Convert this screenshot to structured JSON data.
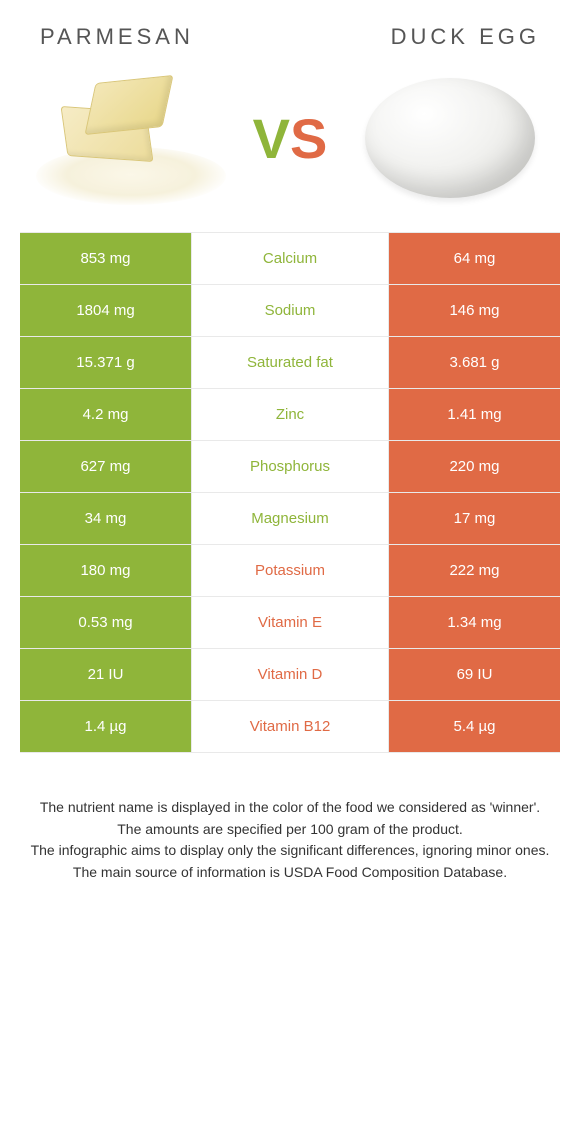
{
  "colors": {
    "green": "#8fb53a",
    "orange": "#e06a45",
    "row_border": "#e9e9e9",
    "text": "#333333",
    "title_text": "#555555",
    "background": "#ffffff"
  },
  "header": {
    "left_title": "PARMESAN",
    "right_title": "DUCK EGG",
    "vs_v": "V",
    "vs_s": "S"
  },
  "rows": [
    {
      "nutrient": "Calcium",
      "left": "853 mg",
      "right": "64 mg",
      "winner": "left"
    },
    {
      "nutrient": "Sodium",
      "left": "1804 mg",
      "right": "146 mg",
      "winner": "left"
    },
    {
      "nutrient": "Saturated fat",
      "left": "15.371 g",
      "right": "3.681 g",
      "winner": "left"
    },
    {
      "nutrient": "Zinc",
      "left": "4.2 mg",
      "right": "1.41 mg",
      "winner": "left"
    },
    {
      "nutrient": "Phosphorus",
      "left": "627 mg",
      "right": "220 mg",
      "winner": "left"
    },
    {
      "nutrient": "Magnesium",
      "left": "34 mg",
      "right": "17 mg",
      "winner": "left"
    },
    {
      "nutrient": "Potassium",
      "left": "180 mg",
      "right": "222 mg",
      "winner": "right"
    },
    {
      "nutrient": "Vitamin E",
      "left": "0.53 mg",
      "right": "1.34 mg",
      "winner": "right"
    },
    {
      "nutrient": "Vitamin D",
      "left": "21 IU",
      "right": "69 IU",
      "winner": "right"
    },
    {
      "nutrient": "Vitamin B12",
      "left": "1.4 µg",
      "right": "5.4 µg",
      "winner": "right"
    }
  ],
  "footnotes": {
    "l1": "The nutrient name is displayed in the color of the food we considered as 'winner'.",
    "l2": "The amounts are specified per 100 gram of the product.",
    "l3": "The infographic aims to display only the significant differences, ignoring minor ones.",
    "l4": "The main source of information is USDA Food Composition Database."
  }
}
